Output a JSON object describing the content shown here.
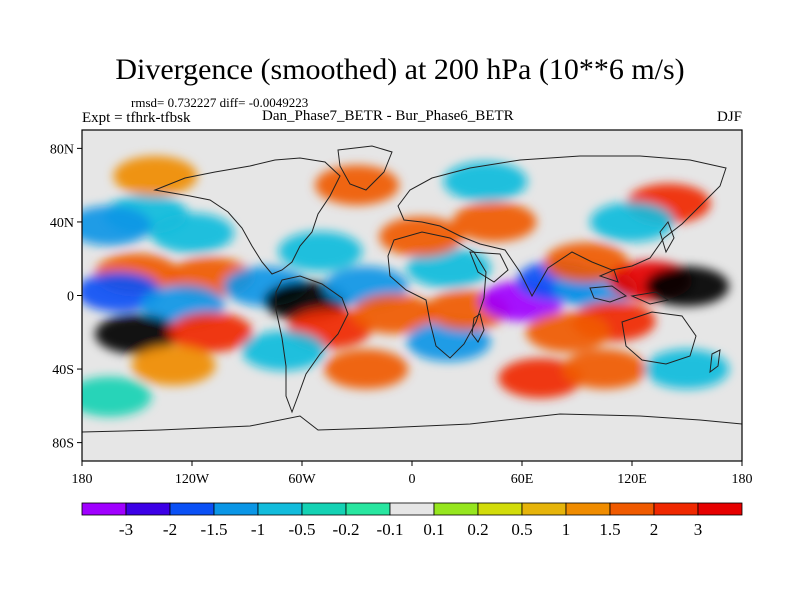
{
  "header": {
    "title": "Divergence (smoothed) at 200 hPa (10**6 m/s)",
    "stats": "rmsd= 0.732227 diff= -0.0049223",
    "expt": "Expt = tfhrk-tfbsk",
    "comparison": "Dan_Phase7_BETR - Bur_Phase6_BETR",
    "season": "DJF"
  },
  "map": {
    "lon_range": [
      -180,
      180
    ],
    "lat_range": [
      -90,
      90
    ],
    "lat_ticks": [
      {
        "value": 80,
        "label": "80N"
      },
      {
        "value": 40,
        "label": "40N"
      },
      {
        "value": 0,
        "label": "0"
      },
      {
        "value": -40,
        "label": "40S"
      },
      {
        "value": -80,
        "label": "80S"
      }
    ],
    "lon_ticks": [
      {
        "value": -180,
        "label": "180"
      },
      {
        "value": -120,
        "label": "120W"
      },
      {
        "value": -60,
        "label": "60W"
      },
      {
        "value": 0,
        "label": "0"
      },
      {
        "value": 60,
        "label": "60E"
      },
      {
        "value": 120,
        "label": "120E"
      },
      {
        "value": 180,
        "label": "180"
      }
    ],
    "background_color": "#e6e6e6",
    "features": [
      {
        "lon": -145,
        "lat": 44,
        "level": 4
      },
      {
        "lon": -165,
        "lat": 38,
        "level": 3
      },
      {
        "lon": -120,
        "lat": 34,
        "level": 4
      },
      {
        "lon": -150,
        "lat": 12,
        "level": 12
      },
      {
        "lon": -110,
        "lat": 10,
        "level": 12
      },
      {
        "lon": -160,
        "lat": 2,
        "level": 2
      },
      {
        "lon": -125,
        "lat": -5,
        "level": 3
      },
      {
        "lon": -150,
        "lat": -21,
        "level": 15
      },
      {
        "lon": -110,
        "lat": -20,
        "level": 13
      },
      {
        "lon": -130,
        "lat": -38,
        "level": 11
      },
      {
        "lon": -165,
        "lat": -55,
        "level": 5
      },
      {
        "lon": -80,
        "lat": 5,
        "level": 3
      },
      {
        "lon": -58,
        "lat": -3,
        "level": 15
      },
      {
        "lon": -45,
        "lat": -18,
        "level": 13
      },
      {
        "lon": -70,
        "lat": -30,
        "level": 4
      },
      {
        "lon": -50,
        "lat": 24,
        "level": 4
      },
      {
        "lon": -25,
        "lat": 5,
        "level": 3
      },
      {
        "lon": -10,
        "lat": -10,
        "level": 12
      },
      {
        "lon": -25,
        "lat": -40,
        "level": 12
      },
      {
        "lon": 20,
        "lat": -25,
        "level": 3
      },
      {
        "lon": 30,
        "lat": -8,
        "level": 12
      },
      {
        "lon": 20,
        "lat": 15,
        "level": 4
      },
      {
        "lon": 5,
        "lat": 32,
        "level": 12
      },
      {
        "lon": 45,
        "lat": 40,
        "level": 12
      },
      {
        "lon": 60,
        "lat": -3,
        "level": 0
      },
      {
        "lon": 80,
        "lat": 8,
        "level": 2
      },
      {
        "lon": 100,
        "lat": 4,
        "level": 3
      },
      {
        "lon": 95,
        "lat": 18,
        "level": 12
      },
      {
        "lon": 130,
        "lat": 8,
        "level": 14
      },
      {
        "lon": 150,
        "lat": 5,
        "level": 15
      },
      {
        "lon": 110,
        "lat": -14,
        "level": 13
      },
      {
        "lon": 85,
        "lat": -20,
        "level": 12
      },
      {
        "lon": 70,
        "lat": -45,
        "level": 13
      },
      {
        "lon": 105,
        "lat": -40,
        "level": 12
      },
      {
        "lon": 150,
        "lat": -40,
        "level": 4
      },
      {
        "lon": 140,
        "lat": 50,
        "level": 13
      },
      {
        "lon": 120,
        "lat": 40,
        "level": 4
      },
      {
        "lon": -30,
        "lat": 60,
        "level": 12
      },
      {
        "lon": 40,
        "lat": 62,
        "level": 4
      },
      {
        "lon": -140,
        "lat": 65,
        "level": 11
      }
    ]
  },
  "colorbar": {
    "colors": [
      "#a000ff",
      "#3c00e6",
      "#0a50f5",
      "#0a96e6",
      "#12bcdc",
      "#14d2b4",
      "#28e6a0",
      "#e6e6e6",
      "#96e61e",
      "#d2dc0a",
      "#e6b40a",
      "#f08c00",
      "#f05a00",
      "#f02800",
      "#e60000"
    ],
    "labels": [
      "-3",
      "-2",
      "-1.5",
      "-1",
      "-0.5",
      "-0.2",
      "-0.1",
      "0.1",
      "0.2",
      "0.5",
      "1",
      "1.5",
      "2",
      "3"
    ]
  }
}
